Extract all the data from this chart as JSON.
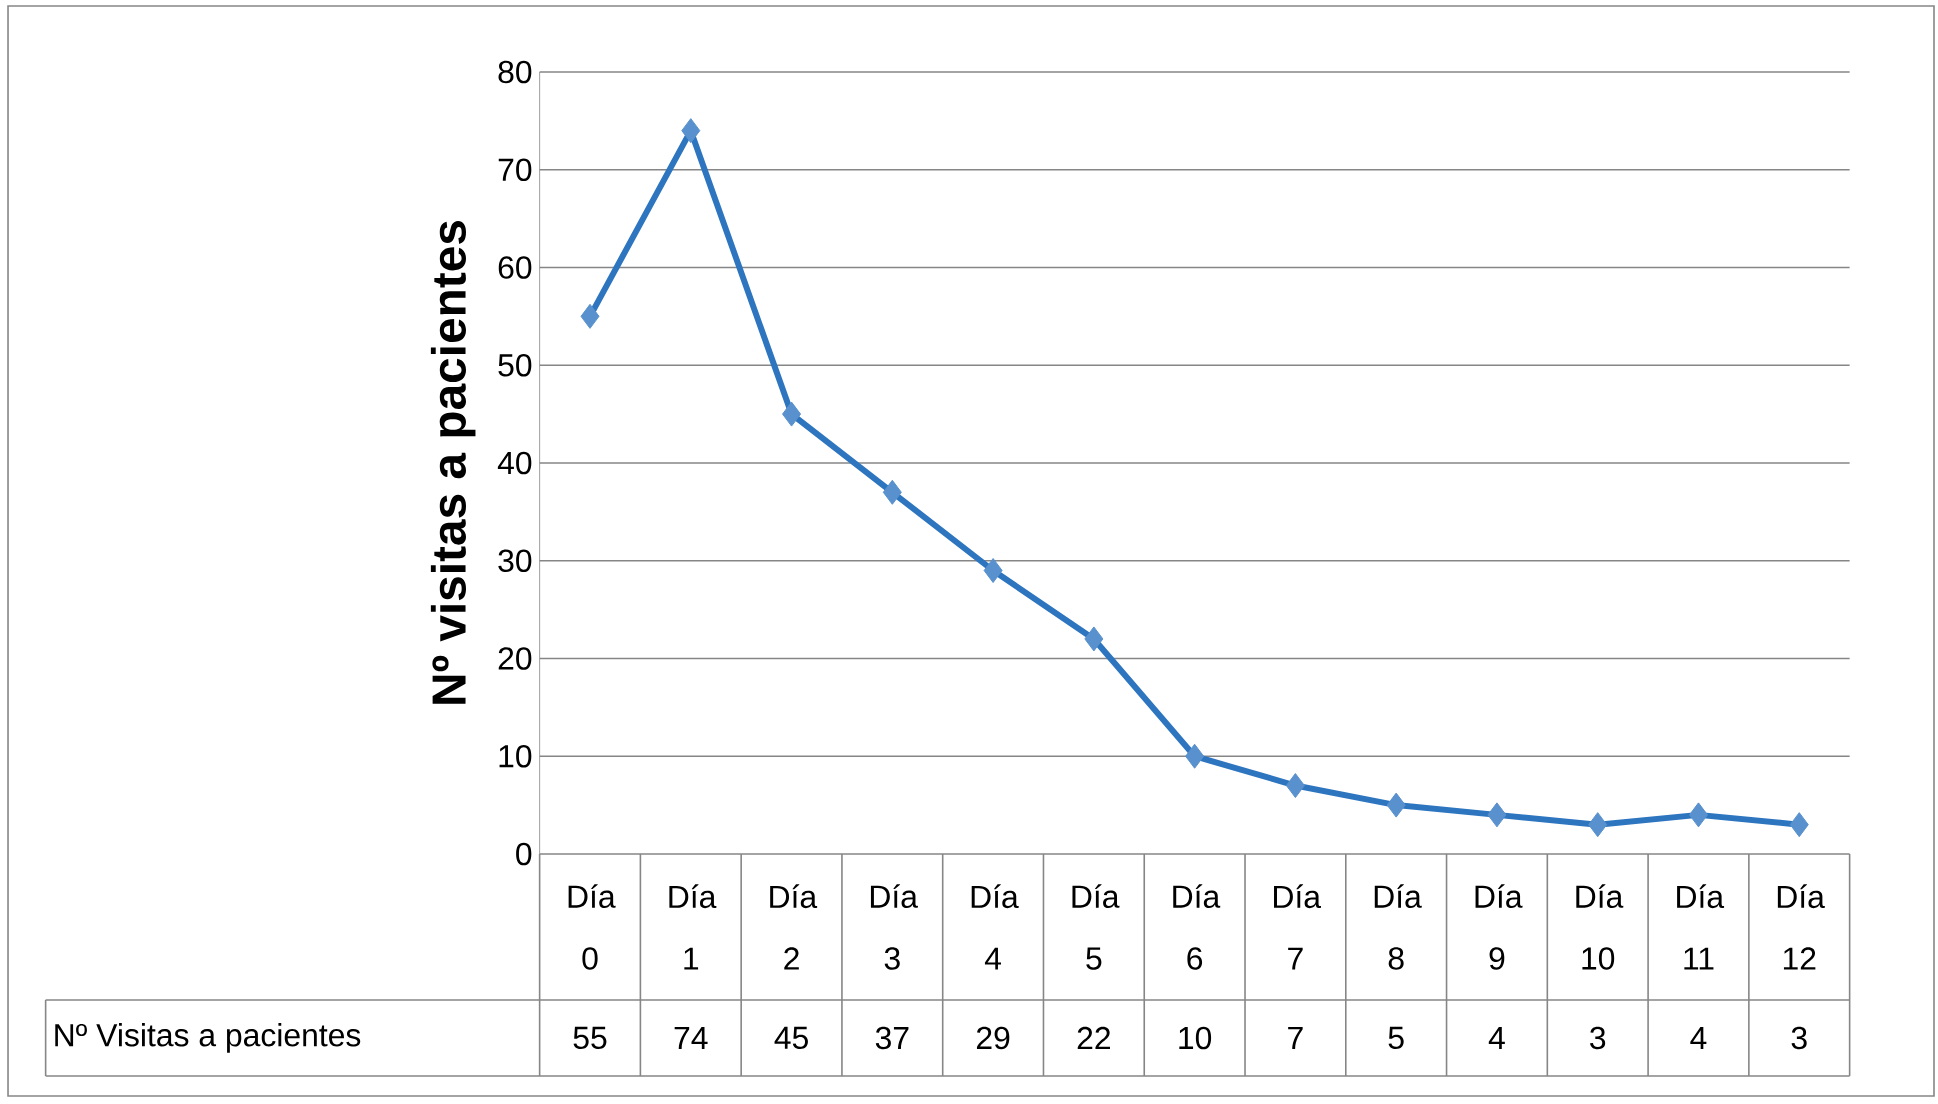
{
  "chart_data": {
    "type": "line",
    "ylabel": "Nº visitas a pacientes",
    "categories": [
      "Día 0",
      "Día 1",
      "Día 2",
      "Día 3",
      "Día 4",
      "Día 5",
      "Día 6",
      "Día 7",
      "Día 8",
      "Día 9",
      "Día 10",
      "Día 11",
      "Día 12"
    ],
    "series": [
      {
        "name": "Nº Visitas a pacientes",
        "color": "#2e75c0",
        "values": [
          55,
          74,
          45,
          37,
          29,
          22,
          10,
          7,
          5,
          4,
          3,
          4,
          3
        ]
      }
    ],
    "ylim": [
      0,
      80
    ],
    "yticks": [
      0,
      10,
      20,
      30,
      40,
      50,
      60,
      70,
      80
    ],
    "grid": "y",
    "marker": "diamond",
    "data_labels": true
  }
}
